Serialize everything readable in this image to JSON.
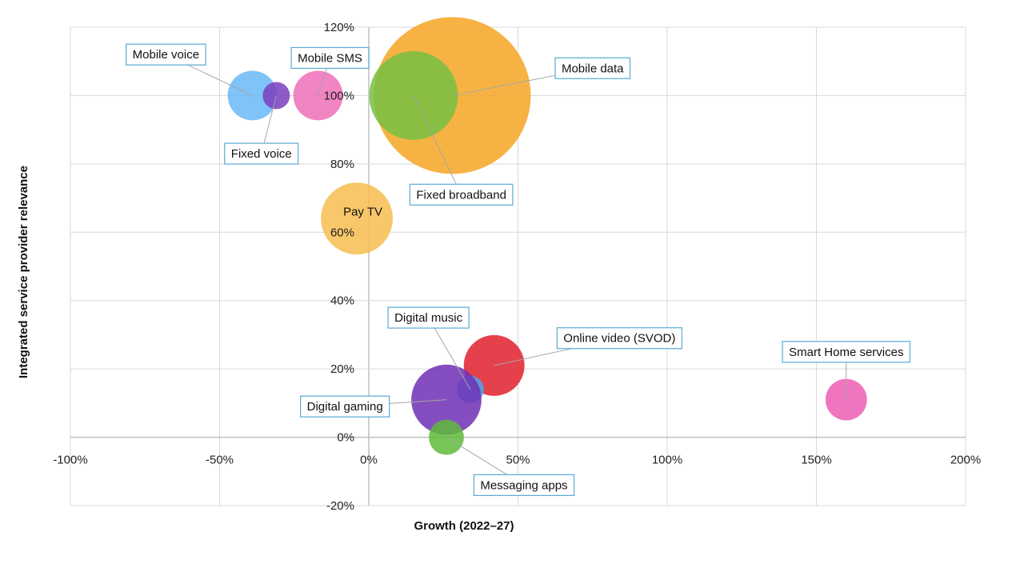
{
  "chart_data": {
    "type": "bubble",
    "xlabel": "Growth (2022–27)",
    "ylabel": "Integrated service provider relevance",
    "xlim": [
      -100,
      200
    ],
    "ylim": [
      -20,
      120
    ],
    "x_ticks": [
      "-100%",
      "-50%",
      "0%",
      "50%",
      "100%",
      "150%",
      "200%"
    ],
    "y_ticks": [
      "-20%",
      "0%",
      "20%",
      "40%",
      "60%",
      "80%",
      "100%",
      "120%"
    ],
    "grid": true,
    "series": [
      {
        "name": "Mobile data",
        "x": 28,
        "y": 100,
        "size": 100,
        "color": "#f5a623",
        "label_x": 75,
        "label_y": 108,
        "callout": "box"
      },
      {
        "name": "Fixed broadband",
        "x": 15,
        "y": 100,
        "size": 32,
        "color": "#77c043",
        "label_x": 31,
        "label_y": 71,
        "callout": "box"
      },
      {
        "name": "Mobile voice",
        "x": -39,
        "y": 100,
        "size": 10,
        "color": "#6ab8f7",
        "label_x": -68,
        "label_y": 112,
        "callout": "box"
      },
      {
        "name": "Mobile SMS",
        "x": -17,
        "y": 100,
        "size": 10,
        "color": "#ee6fb9",
        "label_x": -13,
        "label_y": 111,
        "callout": "box"
      },
      {
        "name": "Fixed voice",
        "x": -31,
        "y": 100,
        "size": 3,
        "color": "#7a3fbe",
        "label_x": -36,
        "label_y": 83,
        "callout": "box"
      },
      {
        "name": "Pay TV",
        "x": -4,
        "y": 64,
        "size": 21,
        "color": "#f6bd4f",
        "label_x": -2,
        "label_y": 66,
        "callout": "none"
      },
      {
        "name": "Online video (SVOD)",
        "x": 42,
        "y": 21,
        "size": 15,
        "color": "#e0202e",
        "label_x": 84,
        "label_y": 29,
        "callout": "box"
      },
      {
        "name": "Digital music",
        "x": 34,
        "y": 14,
        "size": 3,
        "color": "#4aa8f4",
        "label_x": 20,
        "label_y": 35,
        "callout": "box"
      },
      {
        "name": "Digital gaming",
        "x": 26,
        "y": 11,
        "size": 20,
        "color": "#6e2fb5",
        "label_x": -8,
        "label_y": 9,
        "callout": "box"
      },
      {
        "name": "Messaging apps",
        "x": 26,
        "y": 0,
        "size": 5,
        "color": "#5fbb3a",
        "label_x": 52,
        "label_y": -14,
        "callout": "box"
      },
      {
        "name": "Smart Home services",
        "x": 160,
        "y": 11,
        "size": 7,
        "color": "#ec5eb3",
        "label_x": 160,
        "label_y": 25,
        "callout": "box"
      }
    ]
  }
}
